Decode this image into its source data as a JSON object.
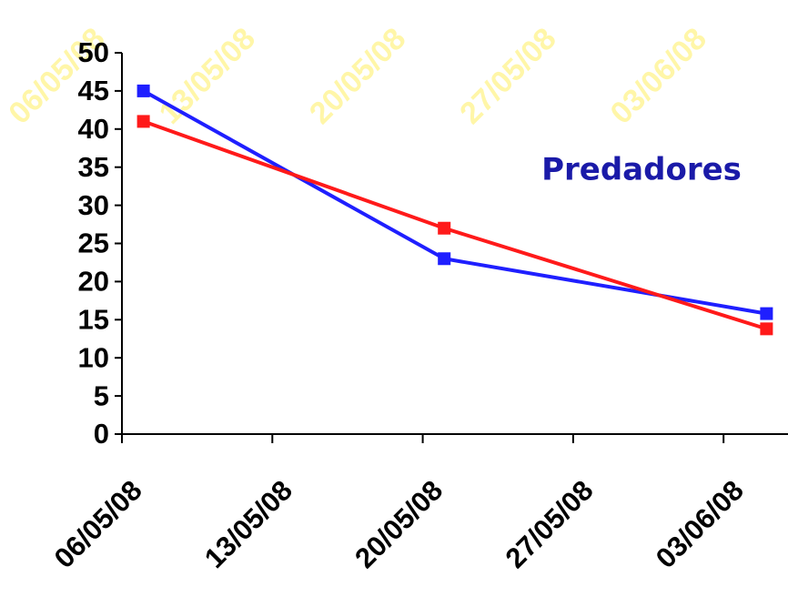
{
  "chart_data": {
    "type": "line",
    "title": "Predadores",
    "x": [
      "07/05/08",
      "21/05/08",
      "05/06/08"
    ],
    "series": [
      {
        "color": "#1f1fff",
        "values": [
          45,
          23,
          15.8
        ]
      },
      {
        "color": "#ff1a1a",
        "values": [
          41,
          27,
          13.8
        ]
      }
    ],
    "xlim": [
      "06/05/08",
      "06/06/08"
    ],
    "xticks": [
      "06/05/08",
      "13/05/08",
      "20/05/08",
      "27/05/08",
      "03/06/08"
    ],
    "ylim": [
      0,
      50
    ],
    "yticks": [
      0,
      5,
      10,
      15,
      20,
      25,
      30,
      35,
      40,
      45,
      50
    ],
    "grid": false
  }
}
